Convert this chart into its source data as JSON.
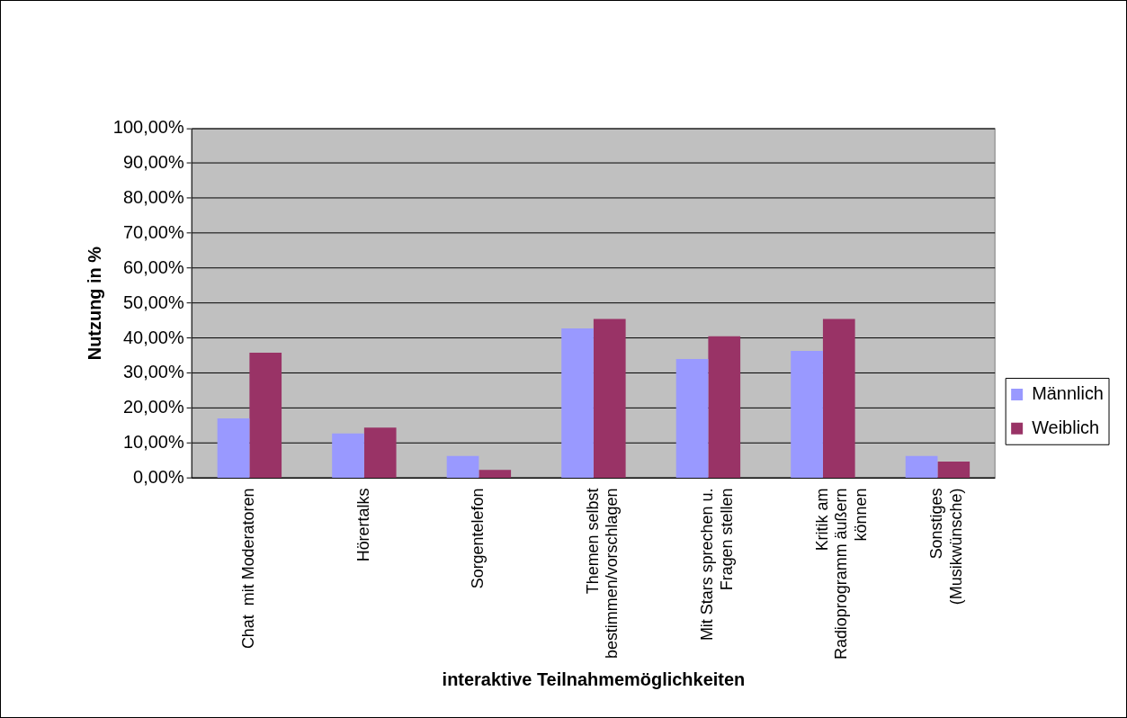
{
  "chart_data": {
    "type": "bar",
    "xlabel": "interaktive Teilnahmemöglichkeiten",
    "ylabel": "Nutzung in %",
    "categories": [
      "Chat  mit Moderatoren",
      "Hörertalks",
      "Sorgentelefon",
      "Themen selbst\nbestimmen/vorschlagen",
      "Mit Stars sprechen u.\nFragen stellen",
      "Kritik am\nRadioprogramm äußern\nkönnen",
      "Sonstiges\n(Musikwünsche)"
    ],
    "series": [
      {
        "name": "Männlich",
        "color": "#9999ff",
        "values": [
          17.1,
          12.8,
          6.4,
          42.8,
          34.1,
          36.4,
          6.4
        ]
      },
      {
        "name": "Weiblich",
        "color": "#993366",
        "values": [
          35.9,
          14.5,
          2.4,
          45.5,
          40.6,
          45.5,
          4.8
        ]
      }
    ],
    "ylim": [
      0,
      100
    ],
    "yticks": [
      {
        "value": 0,
        "label": "0,00%"
      },
      {
        "value": 10,
        "label": "10,00%"
      },
      {
        "value": 20,
        "label": "20,00%"
      },
      {
        "value": 30,
        "label": "30,00%"
      },
      {
        "value": 40,
        "label": "40,00%"
      },
      {
        "value": 50,
        "label": "50,00%"
      },
      {
        "value": 60,
        "label": "60,00%"
      },
      {
        "value": 70,
        "label": "70,00%"
      },
      {
        "value": 80,
        "label": "80,00%"
      },
      {
        "value": 90,
        "label": "90,00%"
      },
      {
        "value": 100,
        "label": "100,00%"
      }
    ],
    "grid": "y",
    "legend": "right"
  }
}
